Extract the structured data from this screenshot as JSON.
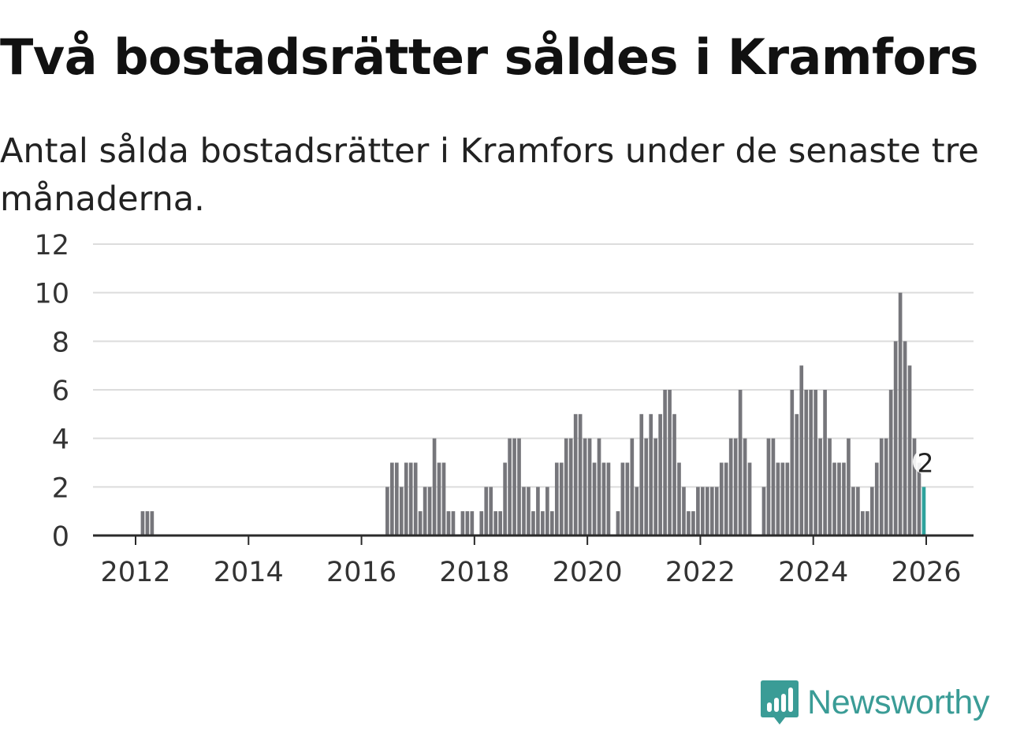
{
  "header": {
    "title": "Två bostadsrätter såldes i Kramfors",
    "subtitle": "Antal sålda bostadsrätter i Kramfors under de senaste tre månaderna."
  },
  "chart_data": {
    "type": "bar",
    "title": "Två bostadsrätter såldes i Kramfors",
    "subtitle": "Antal sålda bostadsrätter i Kramfors under de senaste tre månaderna.",
    "xlabel": "",
    "ylabel": "",
    "x_start_year": 2011.958,
    "x_step_year": 0.08333,
    "xlim": [
      2011.2,
      2026.75
    ],
    "ylim": [
      0,
      12
    ],
    "yticks": [
      "0",
      "2",
      "4",
      "6",
      "8",
      "10",
      "12"
    ],
    "xticks": [
      "2012",
      "2014",
      "2016",
      "2018",
      "2020",
      "2022",
      "2024",
      "2026"
    ],
    "grid": true,
    "values": [
      0,
      0,
      1,
      1,
      1,
      0,
      0,
      0,
      0,
      0,
      0,
      0,
      0,
      0,
      0,
      0,
      0,
      0,
      0,
      0,
      0,
      0,
      0,
      0,
      0,
      0,
      0,
      0,
      0,
      0,
      0,
      0,
      0,
      0,
      0,
      0,
      0,
      0,
      0,
      0,
      0,
      0,
      0,
      0,
      0,
      0,
      0,
      0,
      0,
      0,
      0,
      0,
      0,
      0,
      2,
      3,
      3,
      2,
      3,
      3,
      3,
      1,
      2,
      2,
      4,
      3,
      3,
      1,
      1,
      0,
      1,
      1,
      1,
      0,
      1,
      2,
      2,
      1,
      1,
      3,
      4,
      4,
      4,
      2,
      2,
      1,
      2,
      1,
      2,
      1,
      3,
      3,
      4,
      4,
      5,
      5,
      4,
      4,
      3,
      4,
      3,
      3,
      0,
      1,
      3,
      3,
      4,
      2,
      5,
      4,
      5,
      4,
      5,
      6,
      6,
      5,
      3,
      2,
      1,
      1,
      2,
      2,
      2,
      2,
      2,
      3,
      3,
      4,
      4,
      6,
      4,
      3,
      0,
      0,
      2,
      4,
      4,
      3,
      3,
      3,
      6,
      5,
      7,
      6,
      6,
      6,
      4,
      6,
      4,
      3,
      3,
      3,
      4,
      2,
      2,
      1,
      1,
      2,
      3,
      4,
      4,
      6,
      8,
      10,
      8,
      7,
      4,
      3,
      2
    ],
    "highlight_last": true,
    "highlight_label": "2",
    "colors": {
      "bar": "#76767b",
      "highlight": "#2ea29c",
      "grid": "#dcdcdc",
      "axis": "#2a2a2a",
      "text": "#333333"
    }
  },
  "brand": {
    "name": "Newsworthy",
    "color": "#3a9c96"
  }
}
